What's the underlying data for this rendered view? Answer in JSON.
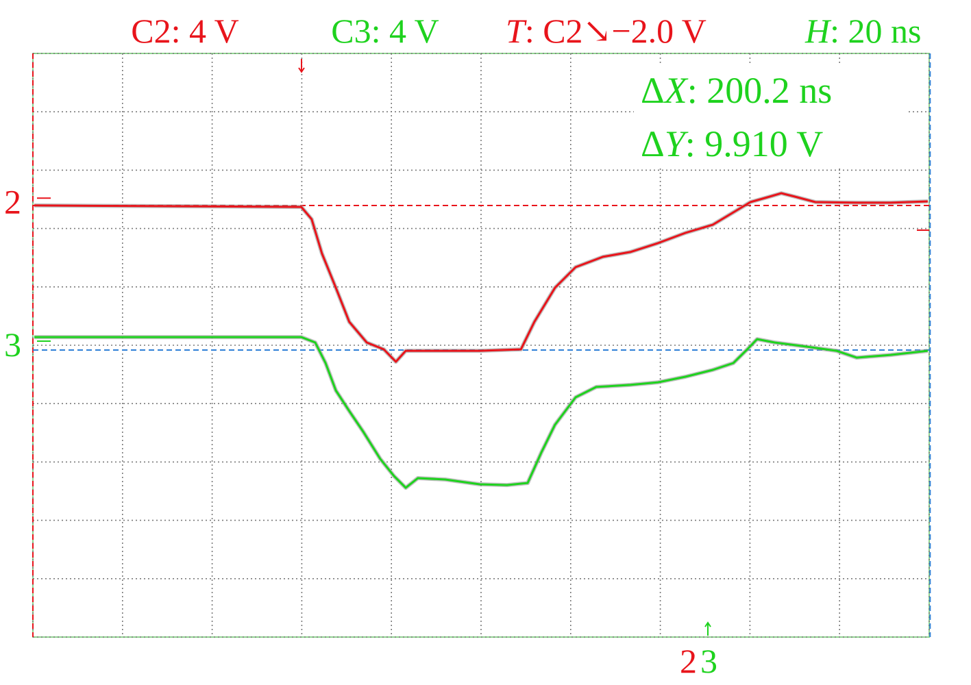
{
  "chart_data": {
    "type": "line",
    "header": {
      "ch2": "C2: 4 V",
      "ch3": "C3: 4 V",
      "trigger": {
        "label": "T",
        "text": ": C2↘−2.0 V"
      },
      "horizontal": {
        "label": "H",
        "text": ": 20 ns"
      }
    },
    "measurements": {
      "dx": {
        "label": "Δ",
        "var": "X",
        "text": ": 200.2 ns"
      },
      "dy": {
        "label": "Δ",
        "var": "Y",
        "text": ": 9.910 V"
      }
    },
    "xlim": [
      0,
      200
    ],
    "ylim": [
      -20,
      20
    ],
    "xticks": [
      0,
      20,
      40,
      60,
      80,
      100,
      120,
      140,
      160,
      180,
      200
    ],
    "yticks": [
      -20,
      -16,
      -12,
      -8,
      -4,
      0,
      4,
      8,
      12,
      16,
      20
    ],
    "grid": true,
    "cursors": {
      "x": [
        0,
        200.2
      ],
      "y": [
        -0.33,
        9.58
      ]
    },
    "series": [
      {
        "name": "2",
        "color": "#e8141b",
        "level": 9.8,
        "x": [
          0.3,
          59.9,
          62.2,
          64.5,
          67.6,
          70.6,
          74.5,
          78.3,
          81.0,
          83.2,
          87.5,
          99.7,
          108.9,
          111.9,
          116.5,
          121.1,
          127.2,
          133.3,
          139.5,
          145.6,
          151.7,
          156.3,
          160.1,
          163.9,
          167.0,
          170.0,
          174.6,
          183.8,
          191.4,
          199.7
        ],
        "values": [
          9.58,
          9.48,
          8.64,
          6.29,
          3.94,
          1.6,
          0.19,
          -0.28,
          -1.13,
          -0.38,
          -0.38,
          -0.38,
          -0.28,
          1.6,
          3.94,
          5.35,
          6.06,
          6.39,
          7.0,
          7.7,
          8.26,
          9.11,
          9.81,
          10.14,
          10.42,
          10.19,
          9.81,
          9.77,
          9.77,
          9.86
        ]
      },
      {
        "name": "3",
        "color": "#1ed21e",
        "level": 0,
        "x": [
          0.3,
          59.9,
          63.0,
          65.3,
          67.6,
          70.6,
          73.7,
          77.5,
          80.6,
          83.2,
          85.9,
          92.0,
          99.7,
          105.8,
          110.4,
          113.5,
          116.5,
          121.1,
          125.7,
          133.3,
          139.5,
          145.6,
          151.7,
          156.3,
          159.4,
          161.6,
          165.5,
          171.6,
          179.3,
          183.8,
          191.4,
          199.7
        ],
        "values": [
          0.56,
          0.56,
          0.19,
          -1.22,
          -3.1,
          -4.51,
          -5.92,
          -7.79,
          -8.97,
          -9.77,
          -9.11,
          -9.2,
          -9.53,
          -9.58,
          -9.44,
          -7.32,
          -5.45,
          -3.57,
          -2.86,
          -2.72,
          -2.54,
          -2.16,
          -1.69,
          -1.22,
          -0.28,
          0.42,
          0.19,
          -0.05,
          -0.38,
          -0.85,
          -0.66,
          -0.38
        ]
      }
    ]
  }
}
